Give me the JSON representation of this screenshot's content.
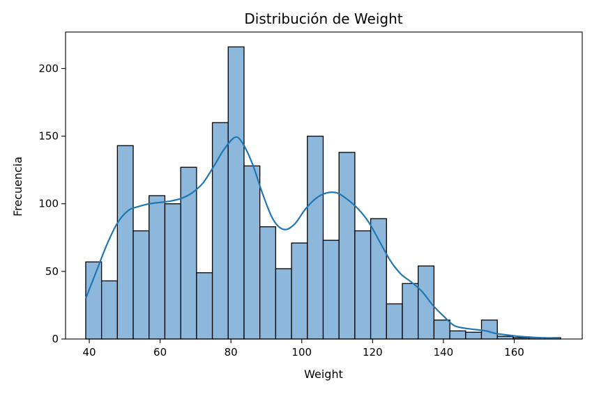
{
  "chart_data": {
    "type": "bar",
    "title": "Distribución de Weight",
    "xlabel": "Weight",
    "ylabel": "Frecuencia",
    "xlim": [
      33.3,
      179.2
    ],
    "ylim": [
      0,
      227
    ],
    "xticks": [
      40,
      60,
      80,
      100,
      120,
      140,
      160
    ],
    "yticks": [
      0,
      50,
      100,
      150,
      200
    ],
    "grid": false,
    "legend": "none",
    "bar_color": "#8db8db",
    "edge_color": "#000000",
    "kde_color": "#1f77b4",
    "bin_start": 39,
    "bin_width": 4.47,
    "values": [
      57,
      43,
      143,
      80,
      106,
      100,
      127,
      49,
      160,
      216,
      128,
      83,
      52,
      71,
      150,
      73,
      138,
      80,
      89,
      26,
      41,
      54,
      14,
      6,
      5,
      14,
      2,
      1,
      1,
      1
    ],
    "kde": {
      "x": [
        39,
        42,
        45,
        48,
        51,
        54,
        57,
        60,
        63,
        66,
        69,
        72,
        75,
        78,
        81,
        83,
        86,
        89,
        92,
        95,
        98,
        101,
        104,
        107,
        110,
        113,
        116,
        119,
        122,
        125,
        128,
        131,
        134,
        137,
        140,
        143,
        146,
        149,
        152,
        155,
        158,
        161,
        164,
        167,
        170,
        173
      ],
      "y": [
        30,
        50,
        70,
        86,
        95,
        98,
        100,
        101,
        102,
        104,
        108,
        115,
        127,
        140,
        149,
        146,
        130,
        107,
        88,
        81,
        85,
        96,
        104,
        108,
        108,
        103,
        96,
        86,
        72,
        58,
        48,
        42,
        35,
        25,
        17,
        10,
        8,
        7,
        6,
        4,
        3,
        2,
        1.5,
        1,
        0.7,
        0.5
      ]
    }
  }
}
